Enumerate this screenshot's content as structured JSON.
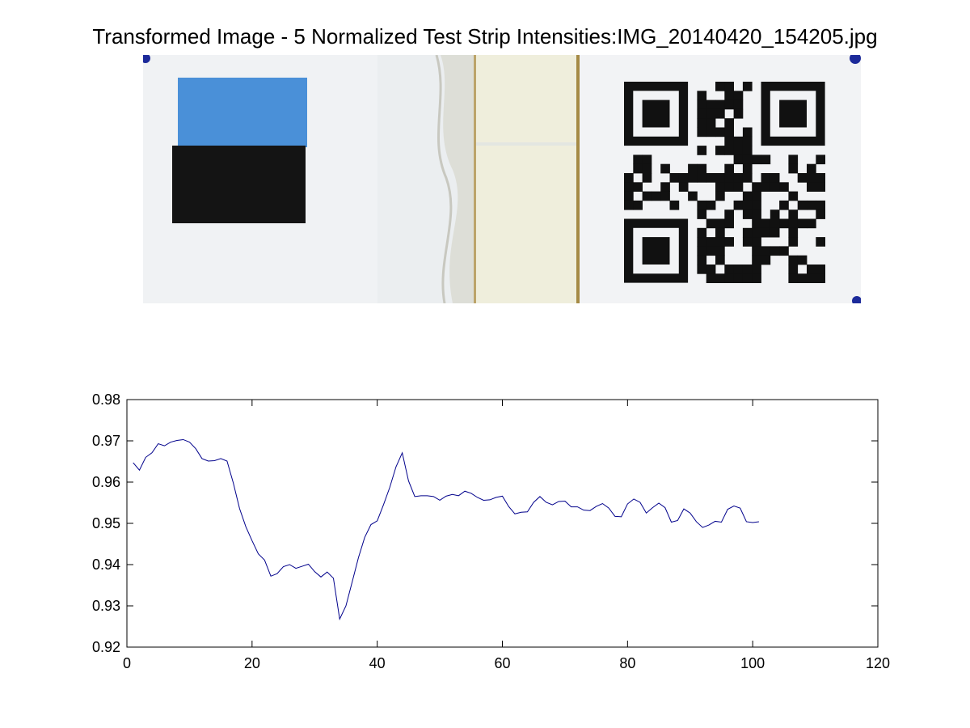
{
  "figure": {
    "title": "Transformed Image - 5 Normalized Test Strip Intensities:IMG_20140420_154205.jpg"
  },
  "colors": {
    "series_line": "#00008b",
    "calibration_blue": "#4a90d8",
    "calibration_black": "#141414",
    "strip_background": "#f1f3f5",
    "test_window": "#efeedc",
    "fiducial_dot": "#1c2a9a"
  },
  "photo": {
    "content": "test-strip-with-calibration-squares-and-qr-code"
  },
  "chart_data": {
    "type": "line",
    "title": "",
    "xlabel": "",
    "ylabel": "",
    "xlim": [
      0,
      120
    ],
    "ylim": [
      0.92,
      0.98
    ],
    "xticks": [
      0,
      20,
      40,
      60,
      80,
      100,
      120
    ],
    "yticks": [
      0.92,
      0.93,
      0.94,
      0.95,
      0.96,
      0.97,
      0.98
    ],
    "grid": false,
    "legend": "none",
    "series": [
      {
        "x": [
          1,
          2,
          3,
          4,
          5,
          6,
          7,
          8,
          9,
          10,
          11,
          12,
          13,
          14,
          15,
          16,
          17,
          18,
          19,
          20,
          21,
          22,
          23,
          24,
          25,
          26,
          27,
          28,
          29,
          30,
          31,
          32,
          33,
          34,
          35,
          36,
          37,
          38,
          39,
          40,
          41,
          42,
          43,
          44,
          45,
          46,
          47,
          48,
          49,
          50,
          51,
          52,
          53,
          54,
          55,
          56,
          57,
          58,
          59,
          60,
          61,
          62,
          63,
          64,
          65,
          66,
          67,
          68,
          69,
          70,
          71,
          72,
          73,
          74,
          75,
          76,
          77,
          78,
          79,
          80,
          81,
          82,
          83,
          84,
          85,
          86,
          87,
          88,
          89,
          90,
          91,
          92,
          93,
          94,
          95,
          96,
          97,
          98,
          99,
          100,
          101
        ],
        "values": [
          0.9647,
          0.9629,
          0.966,
          0.9671,
          0.9693,
          0.9688,
          0.9697,
          0.9701,
          0.9703,
          0.9697,
          0.9681,
          0.9657,
          0.9651,
          0.9652,
          0.9657,
          0.9651,
          0.9598,
          0.9536,
          0.9492,
          0.9458,
          0.9426,
          0.9411,
          0.9372,
          0.9378,
          0.9395,
          0.94,
          0.9391,
          0.9396,
          0.9401,
          0.9383,
          0.937,
          0.9382,
          0.9367,
          0.9268,
          0.93,
          0.9358,
          0.9417,
          0.9466,
          0.9497,
          0.9506,
          0.9545,
          0.9587,
          0.9637,
          0.9671,
          0.9603,
          0.9565,
          0.9567,
          0.9567,
          0.9565,
          0.9556,
          0.9566,
          0.957,
          0.9567,
          0.9578,
          0.9573,
          0.9563,
          0.9556,
          0.9557,
          0.9563,
          0.9566,
          0.9541,
          0.9523,
          0.9527,
          0.9528,
          0.9551,
          0.9565,
          0.9551,
          0.9545,
          0.9553,
          0.9554,
          0.954,
          0.954,
          0.9532,
          0.9531,
          0.9541,
          0.9548,
          0.9537,
          0.9517,
          0.9516,
          0.9547,
          0.9559,
          0.9551,
          0.9525,
          0.9538,
          0.9549,
          0.9538,
          0.9503,
          0.9507,
          0.9535,
          0.9525,
          0.9504,
          0.949,
          0.9496,
          0.9505,
          0.9503,
          0.9534,
          0.9542,
          0.9537,
          0.9504,
          0.9502,
          0.9504
        ]
      }
    ]
  }
}
